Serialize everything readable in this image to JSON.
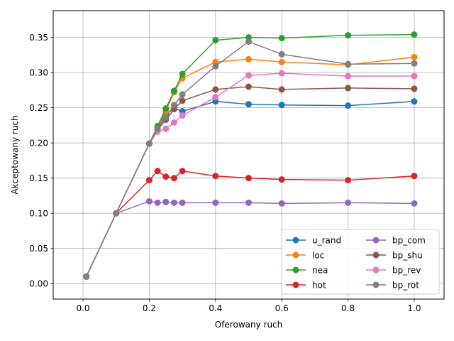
{
  "chart_data": {
    "type": "line",
    "title": "",
    "xlabel": "Oferowany ruch",
    "ylabel": "Akceptowany ruch",
    "xlim": [
      -0.09,
      1.09
    ],
    "ylim": [
      -0.022,
      0.388
    ],
    "xticks": [
      0.0,
      0.2,
      0.4,
      0.6,
      0.8,
      1.0
    ],
    "xtick_labels": [
      "0.0",
      "0.2",
      "0.4",
      "0.6",
      "0.8",
      "1.0"
    ],
    "yticks": [
      0.0,
      0.05,
      0.1,
      0.15,
      0.2,
      0.25,
      0.3,
      0.35
    ],
    "ytick_labels": [
      "0.00",
      "0.05",
      "0.10",
      "0.15",
      "0.20",
      "0.25",
      "0.30",
      "0.35"
    ],
    "grid": true,
    "legend_position": "lower-right",
    "legend_columns": 2,
    "x": [
      0.01,
      0.1,
      0.2,
      0.225,
      0.25,
      0.275,
      0.3,
      0.4,
      0.5,
      0.6,
      0.8,
      1.0
    ],
    "series": [
      {
        "name": "u_rand",
        "color": "#1f77b4",
        "values": [
          0.01,
          0.1,
          0.199,
          0.222,
          0.24,
          0.249,
          0.245,
          0.259,
          0.255,
          0.254,
          0.253,
          0.259
        ]
      },
      {
        "name": "loc",
        "color": "#ff7f0e",
        "values": [
          0.01,
          0.1,
          0.199,
          0.222,
          0.245,
          0.272,
          0.292,
          0.315,
          0.319,
          0.315,
          0.311,
          0.322
        ]
      },
      {
        "name": "nea",
        "color": "#2ca02c",
        "values": [
          0.01,
          0.1,
          0.199,
          0.224,
          0.249,
          0.274,
          0.298,
          0.346,
          0.35,
          0.349,
          0.353,
          0.354
        ]
      },
      {
        "name": "hot",
        "color": "#d62728",
        "values": [
          0.01,
          0.1,
          0.147,
          0.16,
          0.152,
          0.15,
          0.16,
          0.153,
          0.15,
          0.148,
          0.147,
          0.153
        ]
      },
      {
        "name": "bp_com",
        "color": "#9467bd",
        "values": [
          0.01,
          0.1,
          0.117,
          0.115,
          0.116,
          0.115,
          0.115,
          0.115,
          0.115,
          0.114,
          0.115,
          0.114
        ]
      },
      {
        "name": "bp_shu",
        "color": "#8c564b",
        "values": [
          0.01,
          0.1,
          0.199,
          0.219,
          0.233,
          0.248,
          0.26,
          0.276,
          0.28,
          0.276,
          0.278,
          0.277
        ]
      },
      {
        "name": "bp_rev",
        "color": "#e377c2",
        "values": [
          0.01,
          0.1,
          0.199,
          0.216,
          0.22,
          0.229,
          0.239,
          0.265,
          0.296,
          0.299,
          0.295,
          0.295
        ]
      },
      {
        "name": "bp_rot",
        "color": "#7f7f7f",
        "values": [
          0.01,
          0.1,
          0.199,
          0.22,
          0.236,
          0.254,
          0.269,
          0.309,
          0.344,
          0.326,
          0.312,
          0.313
        ]
      }
    ]
  }
}
